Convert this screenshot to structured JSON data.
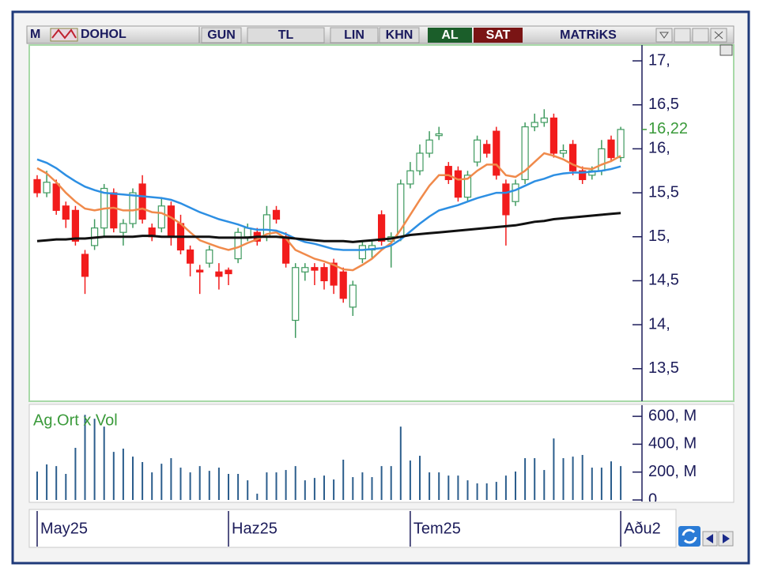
{
  "toolbar": {
    "logo": "M",
    "symbol": "DOHOL",
    "buttons": [
      "GUN",
      "TL",
      "LIN",
      "KHN"
    ],
    "buy": "AL",
    "sell": "SAT",
    "brand": "MATRiKS"
  },
  "chart_data": [
    {
      "type": "candlestick",
      "categories": [
        "May25",
        null,
        null,
        null,
        null,
        null,
        null,
        null,
        null,
        null,
        null,
        null,
        null,
        null,
        null,
        null,
        null,
        null,
        null,
        null,
        "Haz25",
        null,
        null,
        null,
        null,
        null,
        null,
        null,
        null,
        null,
        null,
        null,
        null,
        null,
        null,
        null,
        null,
        null,
        null,
        "Tem25",
        null,
        null,
        null,
        null,
        null,
        null,
        null,
        null,
        null,
        null,
        null,
        null,
        null,
        null,
        null,
        null,
        null,
        null,
        null,
        null,
        null,
        "Aðu2"
      ],
      "open": [
        15.65,
        15.5,
        15.6,
        15.35,
        15.3,
        14.8,
        14.9,
        15.1,
        15.5,
        15.05,
        15.15,
        15.6,
        15.1,
        15.1,
        15.35,
        15.15,
        14.85,
        14.62,
        14.7,
        14.6,
        14.62,
        14.75,
        15.0,
        15.05,
        15.0,
        15.3,
        15.0,
        14.05,
        14.6,
        14.65,
        14.65,
        14.7,
        14.6,
        14.2,
        14.75,
        14.85,
        15.25,
        14.95,
        15.0,
        15.6,
        15.75,
        15.95,
        16.15,
        15.8,
        15.75,
        15.45,
        15.85,
        16.05,
        16.2,
        15.6,
        15.4,
        15.65,
        16.25,
        16.3,
        16.35,
        15.95,
        16.05,
        15.75,
        15.7,
        15.75,
        16.1,
        15.9
      ],
      "high": [
        15.7,
        15.75,
        15.65,
        15.4,
        15.35,
        14.85,
        15.2,
        15.6,
        15.55,
        15.2,
        15.55,
        15.7,
        15.15,
        15.45,
        15.4,
        15.25,
        14.9,
        14.68,
        14.9,
        14.7,
        14.65,
        15.1,
        15.15,
        15.1,
        15.35,
        15.35,
        15.05,
        14.7,
        14.7,
        14.7,
        14.7,
        14.75,
        14.65,
        14.5,
        14.95,
        14.95,
        15.3,
        15.05,
        15.65,
        15.85,
        16.05,
        16.2,
        16.25,
        15.85,
        15.8,
        15.75,
        16.15,
        16.1,
        16.25,
        15.65,
        15.65,
        16.3,
        16.4,
        16.45,
        16.4,
        16.05,
        16.1,
        15.8,
        15.8,
        16.1,
        16.15,
        16.25
      ],
      "low": [
        15.45,
        15.45,
        15.25,
        15.1,
        14.9,
        14.35,
        14.85,
        15.0,
        15.05,
        14.9,
        15.1,
        15.15,
        14.95,
        15.05,
        14.9,
        14.8,
        14.55,
        14.35,
        14.65,
        14.4,
        14.45,
        14.7,
        14.95,
        14.9,
        14.95,
        15.15,
        14.65,
        13.85,
        14.5,
        14.45,
        14.4,
        14.35,
        14.25,
        14.1,
        14.7,
        14.75,
        14.9,
        14.65,
        14.95,
        15.55,
        15.7,
        15.9,
        16.1,
        15.6,
        15.4,
        15.4,
        15.8,
        15.9,
        15.65,
        14.9,
        15.35,
        15.6,
        16.2,
        16.25,
        15.9,
        15.9,
        15.7,
        15.6,
        15.65,
        15.7,
        15.85,
        15.85
      ],
      "close": [
        15.5,
        15.62,
        15.3,
        15.2,
        14.95,
        14.55,
        15.1,
        15.55,
        15.1,
        15.15,
        15.5,
        15.2,
        15.0,
        15.35,
        15.0,
        14.85,
        14.7,
        14.6,
        14.85,
        14.55,
        14.58,
        15.05,
        15.1,
        14.95,
        15.25,
        15.2,
        14.7,
        14.65,
        14.65,
        14.62,
        14.5,
        14.45,
        14.3,
        14.45,
        14.9,
        14.9,
        14.95,
        15.0,
        15.6,
        15.75,
        15.95,
        16.1,
        16.17,
        15.65,
        15.45,
        15.7,
        16.1,
        15.95,
        15.7,
        15.25,
        15.6,
        16.25,
        16.3,
        16.35,
        15.95,
        15.98,
        15.75,
        15.65,
        15.75,
        16.0,
        15.9,
        16.22
      ],
      "up_color": "#3f9a5f",
      "down_color": "#f21c1c",
      "series": [
        {
          "color": "#f08a4b",
          "values": [
            15.78,
            15.72,
            15.62,
            15.5,
            15.4,
            15.32,
            15.3,
            15.32,
            15.33,
            15.3,
            15.3,
            15.32,
            15.28,
            15.27,
            15.22,
            15.15,
            15.05,
            14.96,
            14.92,
            14.88,
            14.85,
            14.88,
            14.93,
            14.97,
            15.03,
            15.05,
            14.98,
            14.85,
            14.8,
            14.75,
            14.72,
            14.68,
            14.63,
            14.62,
            14.68,
            14.75,
            14.85,
            14.93,
            15.08,
            15.25,
            15.42,
            15.58,
            15.7,
            15.7,
            15.65,
            15.66,
            15.75,
            15.82,
            15.82,
            15.7,
            15.68,
            15.75,
            15.85,
            15.95,
            15.92,
            15.88,
            15.82,
            15.78,
            15.77,
            15.82,
            15.86,
            15.92
          ]
        },
        {
          "color": "#2d8fe3",
          "values": [
            15.88,
            15.84,
            15.78,
            15.7,
            15.63,
            15.57,
            15.53,
            15.5,
            15.49,
            15.48,
            15.47,
            15.46,
            15.45,
            15.44,
            15.42,
            15.38,
            15.33,
            15.28,
            15.24,
            15.2,
            15.17,
            15.14,
            15.1,
            15.08,
            15.08,
            15.07,
            15.03,
            14.98,
            14.94,
            14.92,
            14.89,
            14.86,
            14.85,
            14.85,
            14.85,
            14.86,
            14.87,
            14.9,
            14.97,
            15.06,
            15.15,
            15.23,
            15.3,
            15.33,
            15.36,
            15.4,
            15.44,
            15.47,
            15.5,
            15.5,
            15.53,
            15.58,
            15.63,
            15.66,
            15.7,
            15.72,
            15.73,
            15.73,
            15.74,
            15.75,
            15.77,
            15.8
          ]
        },
        {
          "color": "#111111",
          "values": [
            14.95,
            14.96,
            14.97,
            14.97,
            14.98,
            14.98,
            14.99,
            15.0,
            15.0,
            15.0,
            15.0,
            15.01,
            15.01,
            15.0,
            15.0,
            15.0,
            15.0,
            15.0,
            15.0,
            14.99,
            14.99,
            14.99,
            14.99,
            15.0,
            15.0,
            15.0,
            14.99,
            14.98,
            14.97,
            14.96,
            14.95,
            14.95,
            14.95,
            14.94,
            14.95,
            14.96,
            14.97,
            14.98,
            15.0,
            15.02,
            15.03,
            15.04,
            15.05,
            15.06,
            15.07,
            15.08,
            15.09,
            15.1,
            15.11,
            15.12,
            15.13,
            15.15,
            15.17,
            15.18,
            15.2,
            15.21,
            15.22,
            15.23,
            15.24,
            15.25,
            15.26,
            15.27
          ]
        }
      ],
      "ylim": [
        13.13,
        17.18
      ],
      "yticks": [
        {
          "value": 17,
          "label": "17,"
        },
        {
          "value": 16.5,
          "label": "16,5"
        },
        {
          "value": 16,
          "label": "16,"
        },
        {
          "value": 15.5,
          "label": "15,5"
        },
        {
          "value": 15,
          "label": "15,"
        },
        {
          "value": 14.5,
          "label": "14,5"
        },
        {
          "value": 14,
          "label": "14,"
        },
        {
          "value": 13.5,
          "label": "13,5"
        }
      ],
      "last_value": {
        "value": 16.22,
        "label": "16,22",
        "color": "#3a9a3a"
      }
    },
    {
      "type": "bar",
      "title": "Ag.Ort x Vol",
      "color": "#2b5d8c",
      "values": [
        204,
        255,
        243,
        187,
        374,
        611,
        583,
        526,
        345,
        368,
        311,
        272,
        198,
        260,
        300,
        232,
        198,
        243,
        209,
        232,
        187,
        187,
        141,
        45,
        198,
        198,
        215,
        243,
        141,
        158,
        175,
        147,
        289,
        164,
        198,
        164,
        243,
        243,
        526,
        283,
        317,
        198,
        198,
        175,
        175,
        141,
        119,
        119,
        130,
        175,
        204,
        300,
        300,
        215,
        441,
        300,
        311,
        323,
        232,
        232,
        277,
        243
      ],
      "ylim": [
        0,
        680
      ],
      "yticks": [
        {
          "value": 600,
          "label": "600, M"
        },
        {
          "value": 400,
          "label": "400, M"
        },
        {
          "value": 200,
          "label": "200, M"
        },
        0
      ]
    }
  ]
}
